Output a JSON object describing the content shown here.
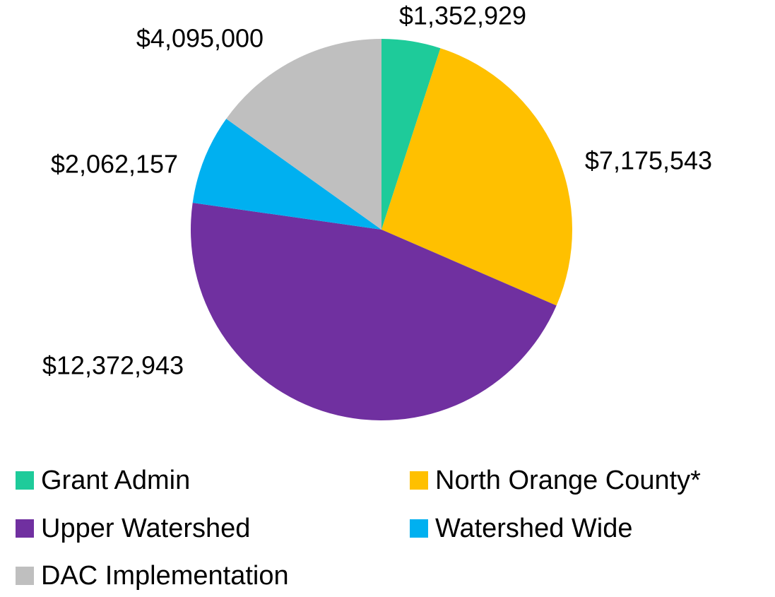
{
  "chart_data": {
    "type": "pie",
    "categories": [
      "Grant Admin",
      "North Orange County*",
      "Upper Watershed",
      "Watershed Wide",
      "DAC Implementation"
    ],
    "values": [
      1352929,
      7175543,
      12372943,
      2062157,
      4095000
    ],
    "value_labels": [
      "$1,352,929",
      "$7,175,543",
      "$12,372,943",
      "$2,062,157",
      "$4,095,000"
    ],
    "colors": [
      "#1ecb9a",
      "#ffc000",
      "#7030a0",
      "#00b0f0",
      "#bfbfbf"
    ]
  }
}
